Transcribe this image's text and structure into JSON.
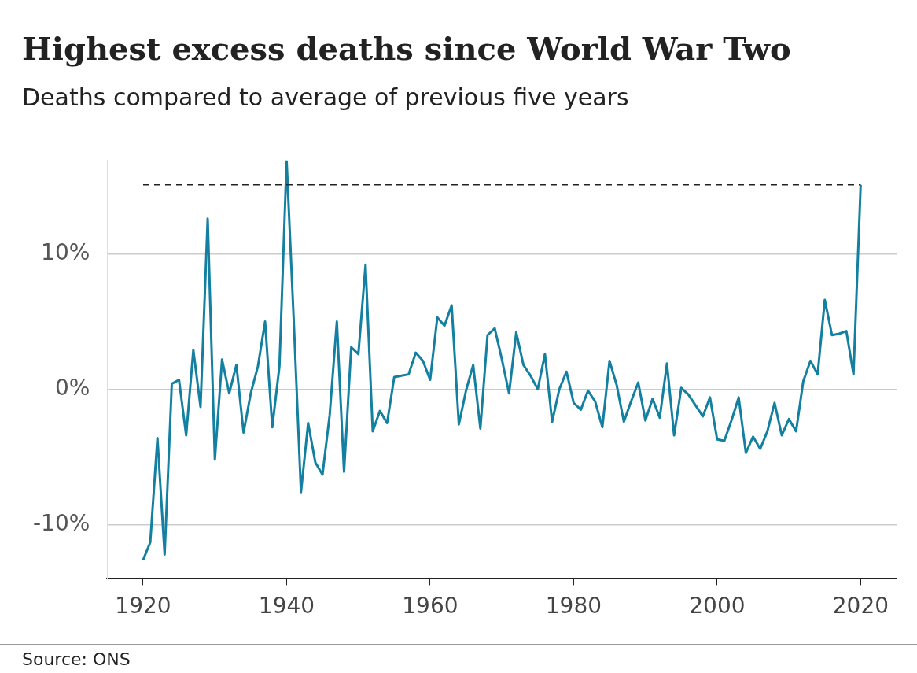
{
  "chart_data": {
    "type": "line",
    "title": "Highest excess deaths since World War Two",
    "subtitle": "Deaths compared to average of previous five years",
    "x": [
      1920,
      1921,
      1922,
      1923,
      1924,
      1925,
      1926,
      1927,
      1928,
      1929,
      1930,
      1931,
      1932,
      1933,
      1934,
      1935,
      1936,
      1937,
      1938,
      1939,
      1940,
      1941,
      1942,
      1943,
      1944,
      1945,
      1946,
      1947,
      1948,
      1949,
      1950,
      1951,
      1952,
      1953,
      1954,
      1955,
      1956,
      1957,
      1958,
      1959,
      1960,
      1961,
      1962,
      1963,
      1964,
      1965,
      1966,
      1967,
      1968,
      1969,
      1970,
      1971,
      1972,
      1973,
      1974,
      1975,
      1976,
      1977,
      1978,
      1979,
      1980,
      1981,
      1982,
      1983,
      1984,
      1985,
      1986,
      1987,
      1988,
      1989,
      1990,
      1991,
      1992,
      1993,
      1994,
      1995,
      1996,
      1997,
      1998,
      1999,
      2000,
      2001,
      2002,
      2003,
      2004,
      2005,
      2006,
      2007,
      2008,
      2009,
      2010,
      2011,
      2012,
      2013,
      2014,
      2015,
      2016,
      2017,
      2018,
      2019,
      2020
    ],
    "series": [
      {
        "color": "#1380a1",
        "values": [
          -12.6,
          -11.3,
          -3.6,
          -12.2,
          0.4,
          0.7,
          -3.4,
          2.9,
          -1.3,
          12.6,
          -5.2,
          2.2,
          -0.3,
          1.8,
          -3.2,
          -0.3,
          1.7,
          5.0,
          -2.8,
          1.7,
          16.9,
          5.0,
          -7.6,
          -2.5,
          -5.4,
          -6.3,
          -1.9,
          5.0,
          -6.1,
          3.1,
          2.6,
          9.2,
          -3.1,
          -1.6,
          -2.5,
          0.9,
          1.0,
          1.1,
          2.7,
          2.1,
          0.7,
          5.3,
          4.7,
          6.2,
          -2.6,
          -0.1,
          1.8,
          -2.9,
          4.0,
          4.5,
          2.2,
          -0.3,
          4.2,
          1.8,
          1.0,
          0.0,
          2.6,
          -2.4,
          0.0,
          1.3,
          -1.0,
          -1.5,
          -0.1,
          -0.9,
          -2.8,
          2.1,
          0.3,
          -2.4,
          -0.9,
          0.5,
          -2.3,
          -0.7,
          -2.1,
          1.9,
          -3.4,
          0.1,
          -0.4,
          -1.2,
          -2.0,
          -0.6,
          -3.7,
          -3.8,
          -2.3,
          -0.6,
          -4.7,
          -3.5,
          -4.4,
          -3.1,
          -1.0,
          -3.4,
          -2.2,
          -3.1,
          0.6,
          2.1,
          1.1,
          6.6,
          4.0,
          4.1,
          4.3,
          1.1,
          15.1
        ]
      }
    ],
    "xlim": [
      1915,
      2025
    ],
    "xticks": [
      1920,
      1940,
      1960,
      1980,
      2000,
      2020
    ],
    "ylim": [
      -14,
      16.9
    ],
    "yticks": [
      {
        "value": -10,
        "label": "-10%"
      },
      {
        "value": 0,
        "label": "0%"
      },
      {
        "value": 10,
        "label": "10%"
      }
    ],
    "grid": "y",
    "legend": false,
    "marker": "none",
    "line_style": "solid",
    "ref_lines": [
      {
        "axis": "y",
        "value": 15.1,
        "color": "#222222",
        "line_style": "dashed"
      }
    ],
    "annotations": [
      "Source: ONS"
    ]
  }
}
